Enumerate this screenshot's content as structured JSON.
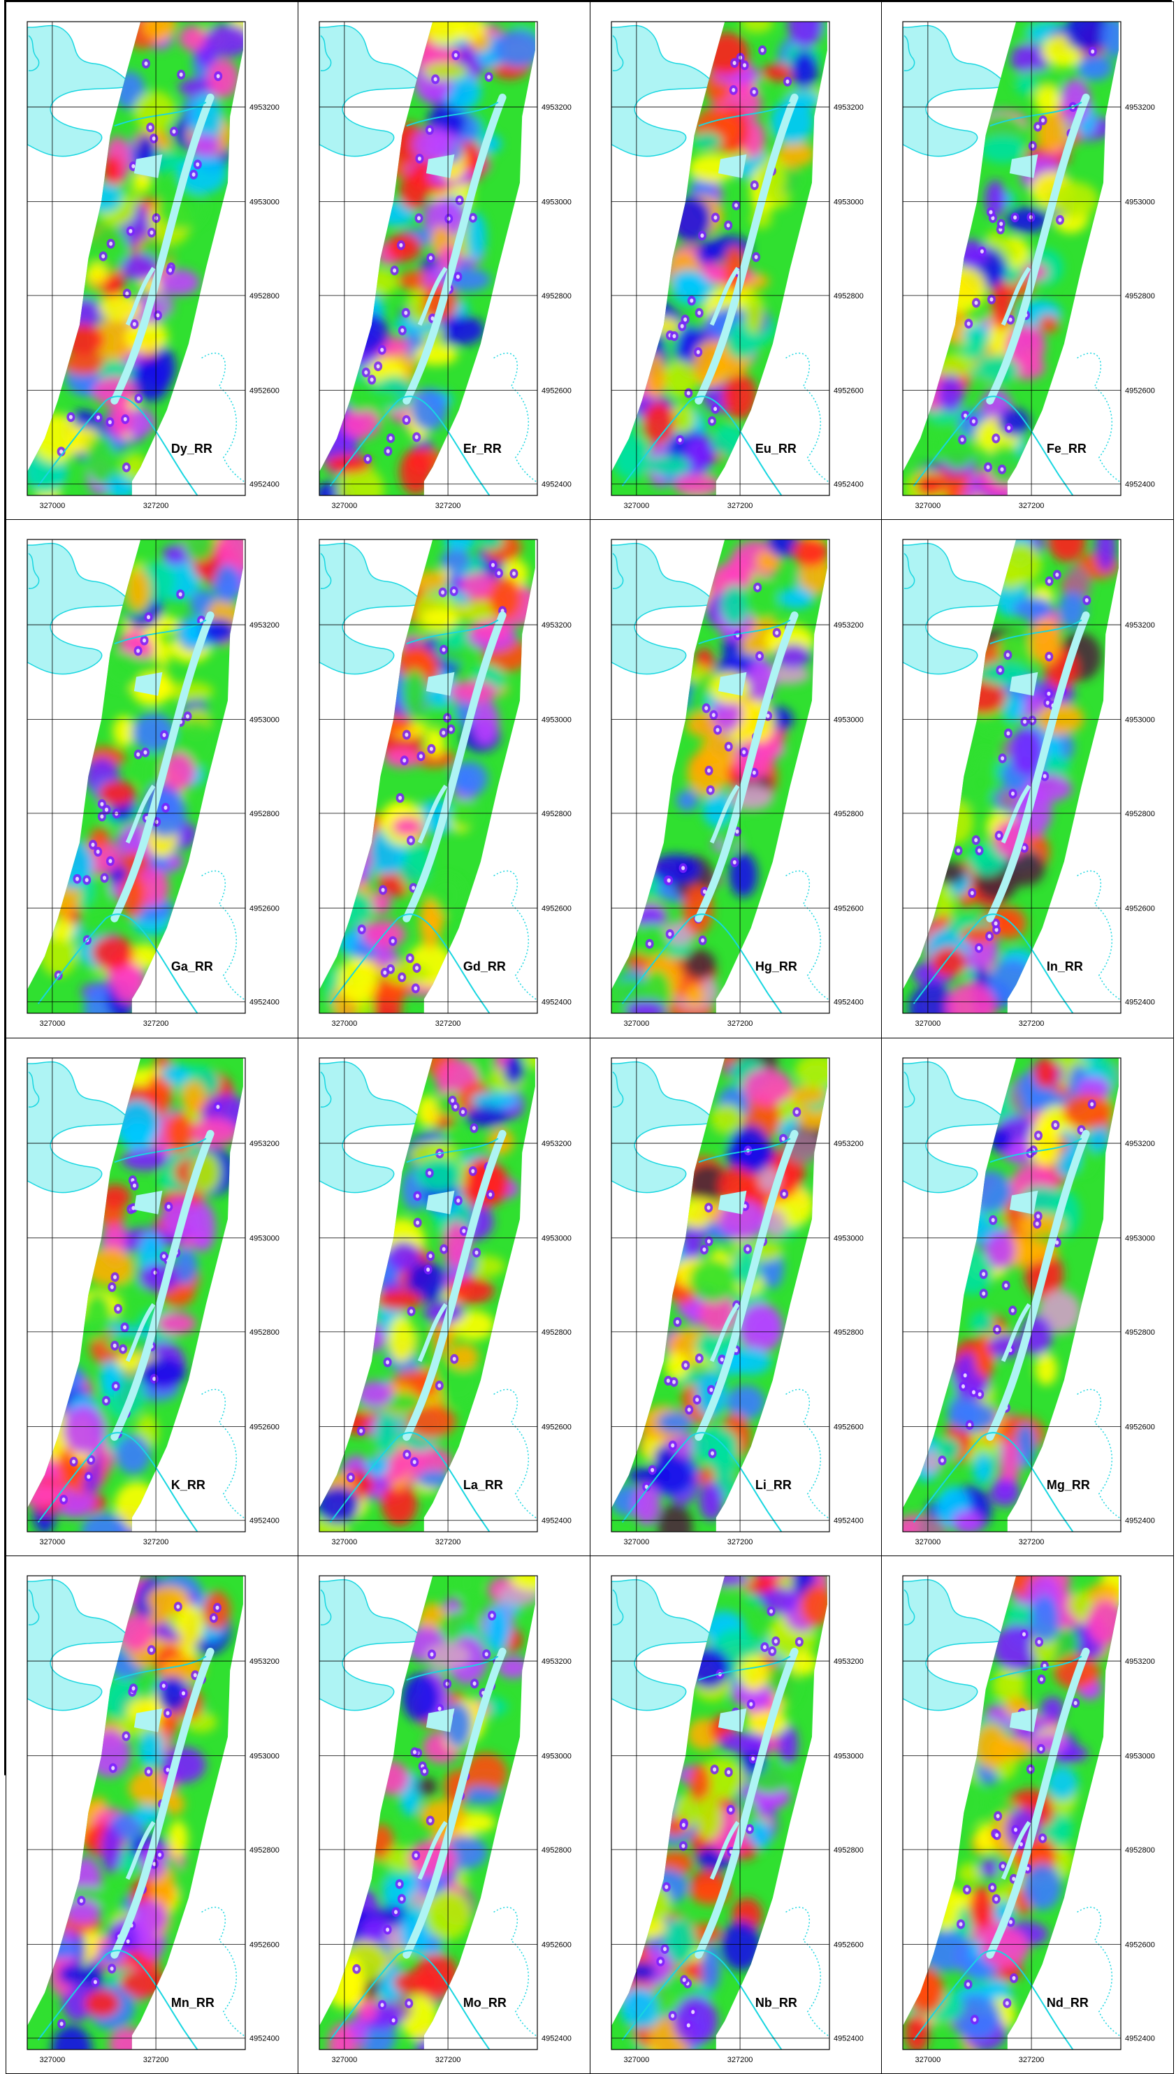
{
  "axes": {
    "x_ticks": [
      "327000",
      "327200"
    ],
    "y_ticks": [
      "4953200",
      "4953000",
      "4952800",
      "4952600",
      "4952400"
    ]
  },
  "panels": [
    {
      "label": "Dy_RR",
      "seed": 11,
      "dark": false
    },
    {
      "label": "Er_RR",
      "seed": 23,
      "dark": false
    },
    {
      "label": "Eu_RR",
      "seed": 37,
      "dark": false
    },
    {
      "label": "Fe_RR",
      "seed": 41,
      "dark": false
    },
    {
      "label": "Ga_RR",
      "seed": 53,
      "dark": false
    },
    {
      "label": "Gd_RR",
      "seed": 67,
      "dark": false
    },
    {
      "label": "Hg_RR",
      "seed": 79,
      "dark": true
    },
    {
      "label": "In_RR",
      "seed": 83,
      "dark": true
    },
    {
      "label": "K_RR",
      "seed": 97,
      "dark": false
    },
    {
      "label": "La_RR",
      "seed": 101,
      "dark": false
    },
    {
      "label": "Li_RR",
      "seed": 113,
      "dark": true
    },
    {
      "label": "Mg_RR",
      "seed": 127,
      "dark": true
    },
    {
      "label": "Mn_RR",
      "seed": 131,
      "dark": false
    },
    {
      "label": "Mo_RR",
      "seed": 149,
      "dark": true
    },
    {
      "label": "Nb_RR",
      "seed": 151,
      "dark": false
    },
    {
      "label": "Nd_RR",
      "seed": 163,
      "dark": false
    }
  ],
  "colors": {
    "water": "#aef4f4",
    "water_line": "#19d6e0",
    "palette": [
      "#1a10e8",
      "#3a7bff",
      "#00c8ff",
      "#00e0a0",
      "#30e030",
      "#b8f000",
      "#ffff00",
      "#ffb000",
      "#ff4a10",
      "#ff2020",
      "#ff40c0",
      "#c040ff",
      "#7a20ff"
    ],
    "dark_palette": [
      "#4a2a3a",
      "#a07090",
      "#d0a0c8"
    ]
  }
}
